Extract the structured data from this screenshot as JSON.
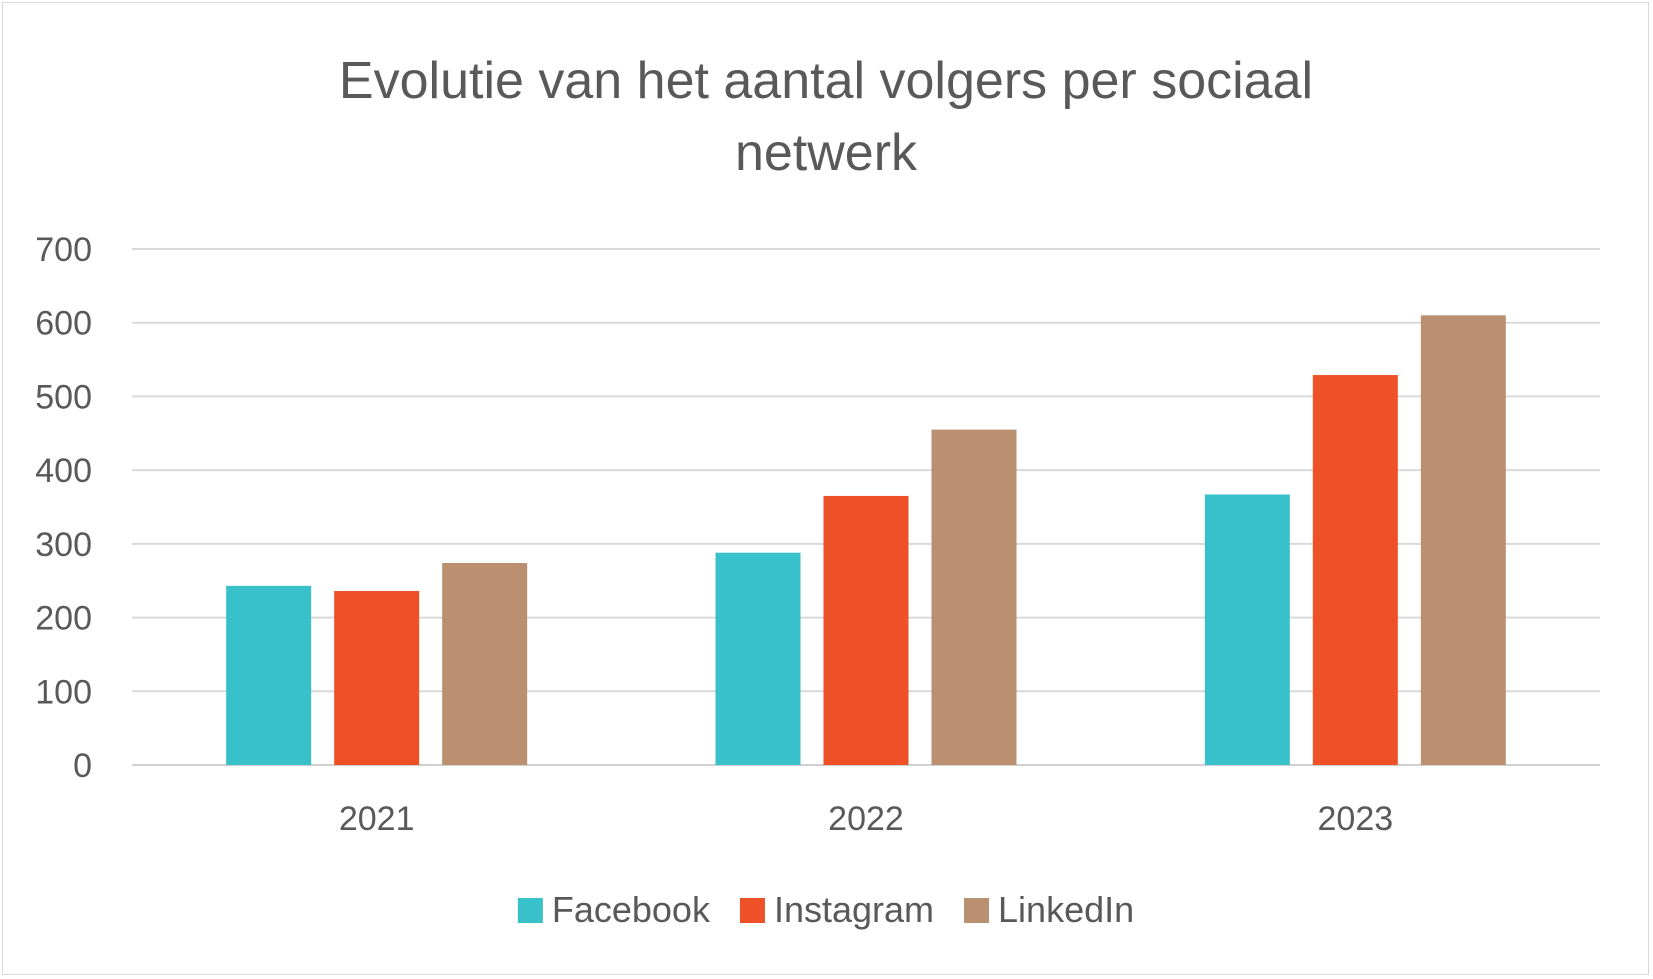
{
  "chart_data": {
    "type": "bar",
    "title": "Evolutie van het aantal volgers per sociaal netwerk",
    "title_lines": [
      "Evolutie van het aantal volgers per sociaal",
      "netwerk"
    ],
    "xlabel": "",
    "ylabel": "",
    "categories": [
      "2021",
      "2022",
      "2023"
    ],
    "series": [
      {
        "name": "Facebook",
        "color": "#38C0CB",
        "values": [
          243,
          288,
          367
        ]
      },
      {
        "name": "Instagram",
        "color": "#EE5128",
        "values": [
          236,
          365,
          529
        ]
      },
      {
        "name": "LinkedIn",
        "color": "#BA9071",
        "values": [
          274,
          455,
          610
        ]
      }
    ],
    "ylim": [
      0,
      700
    ],
    "yticks": [
      0,
      100,
      200,
      300,
      400,
      500,
      600,
      700
    ],
    "grid": true,
    "legend_position": "bottom"
  }
}
